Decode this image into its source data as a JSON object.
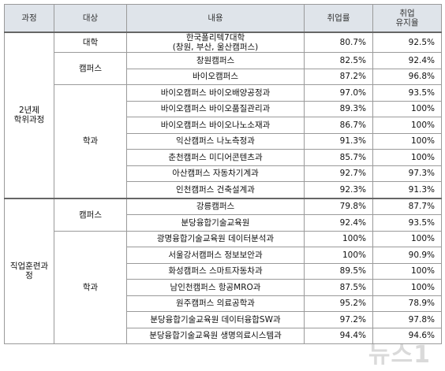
{
  "table": {
    "header": [
      "과정",
      "대상",
      "내용",
      "취업률",
      "취업\n유지율"
    ],
    "groups": [
      {
        "label": "2년제\n학위과정",
        "sections": [
          {
            "label": "대학",
            "rows": [
              [
                "한국폴리텍7대학\n(창원, 부산, 울산캠퍼스)",
                "80.7%",
                "92.5%"
              ]
            ]
          },
          {
            "label": "캠퍼스",
            "rows": [
              [
                "창원캠퍼스",
                "82.5%",
                "92.4%"
              ],
              [
                "바이오캠퍼스",
                "87.2%",
                "96.8%"
              ]
            ]
          },
          {
            "label": "학과",
            "rows": [
              [
                "바이오캠퍼스 바이오배양공정과",
                "97.0%",
                "93.5%"
              ],
              [
                "바이오캠퍼스 바이오품질관리과",
                "89.3%",
                "100%"
              ],
              [
                "바이오캠퍼스 바이오나노소재과",
                "86.7%",
                "100%"
              ],
              [
                "익산캠퍼스 나노측정과",
                "91.3%",
                "100%"
              ],
              [
                "춘천캠퍼스 미디어콘텐츠과",
                "85.7%",
                "100%"
              ],
              [
                "아산캠퍼스 자동차기계과",
                "92.7%",
                "97.3%"
              ],
              [
                "인천캠퍼스 건축설계과",
                "92.3%",
                "91.3%"
              ]
            ]
          }
        ]
      },
      {
        "label": "직업훈련과\n정",
        "sections": [
          {
            "label": "캠퍼스",
            "rows": [
              [
                "강릉캠퍼스",
                "79.8%",
                "87.7%"
              ],
              [
                "분당융합기술교육원",
                "92.4%",
                "93.5%"
              ]
            ]
          },
          {
            "label": "학과",
            "rows": [
              [
                "광명융합기술교육원 데이터분석과",
                "100%",
                "100%"
              ],
              [
                "서울강서캠퍼스 정보보안과",
                "100%",
                "90.9%"
              ],
              [
                "화성캠퍼스 스마트자동차과",
                "89.5%",
                "100%"
              ],
              [
                "남인천캠퍼스 항공MRO과",
                "87.5%",
                "100%"
              ],
              [
                "원주캠퍼스 의료공학과",
                "95.2%",
                "78.9%"
              ],
              [
                "분당융합기술교육원 데이터융합SW과",
                "97.2%",
                "97.8%"
              ],
              [
                "분당융합기술교육원 생명의료시스템과",
                "94.4%",
                "94.6%"
              ]
            ]
          }
        ]
      }
    ]
  },
  "watermark": "뉴스1"
}
